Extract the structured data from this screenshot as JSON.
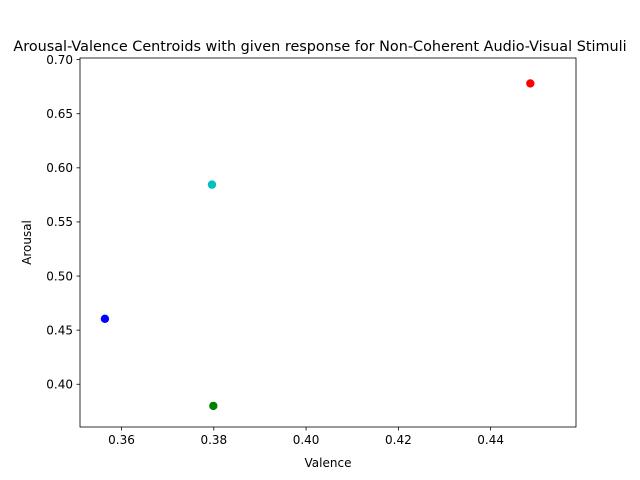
{
  "chart_data": {
    "type": "scatter",
    "title": "Arousal-Valence Centroids with given response for Non-Coherent Audio-Visual Stimuli",
    "xlabel": "Valence",
    "ylabel": "Arousal",
    "xlim": [
      0.351,
      0.4585
    ],
    "ylim": [
      0.3605,
      0.7015
    ],
    "xticks": [
      0.36,
      0.38,
      0.4,
      0.42,
      0.44
    ],
    "xtick_labels": [
      "0.36",
      "0.38",
      "0.40",
      "0.42",
      "0.44"
    ],
    "yticks": [
      0.4,
      0.45,
      0.5,
      0.55,
      0.6,
      0.65,
      0.7
    ],
    "ytick_labels": [
      "0.40",
      "0.45",
      "0.50",
      "0.55",
      "0.60",
      "0.65",
      "0.70"
    ],
    "grid": false,
    "points": [
      {
        "x": 0.3564,
        "y": 0.4605,
        "color": "#0000ff"
      },
      {
        "x": 0.3796,
        "y": 0.5845,
        "color": "#00bfbf"
      },
      {
        "x": 0.3799,
        "y": 0.38,
        "color": "#008000"
      },
      {
        "x": 0.4486,
        "y": 0.678,
        "color": "#ff0000"
      }
    ]
  }
}
